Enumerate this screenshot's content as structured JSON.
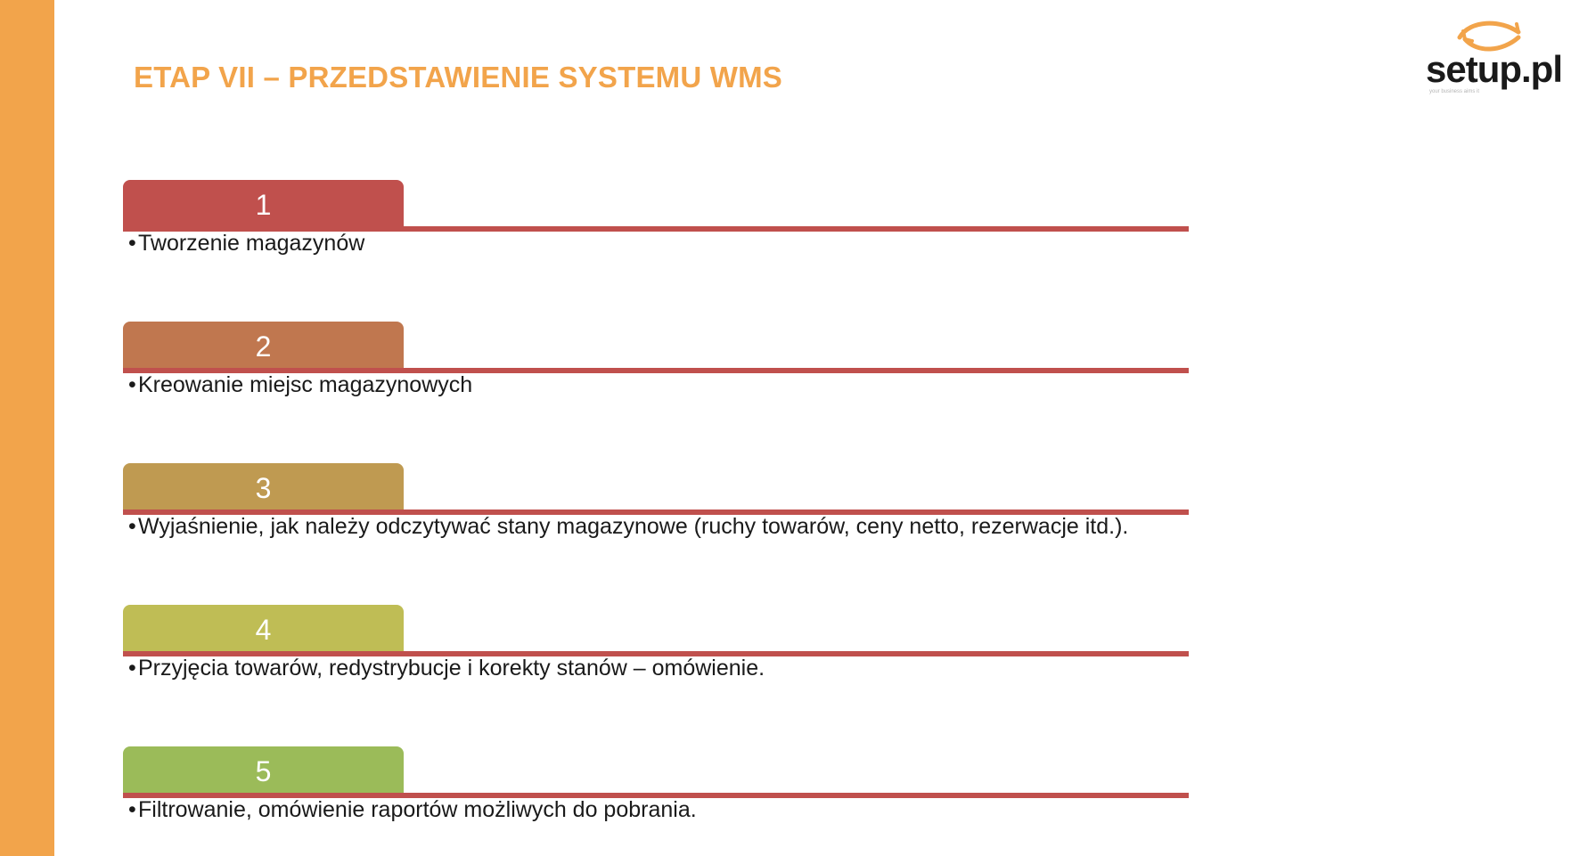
{
  "title": "ETAP VII – PRZEDSTAWIENIE SYSTEMU WMS",
  "logo": {
    "text": "setup.pl",
    "tagline": "your business aims it"
  },
  "colors": {
    "accent": "#f2a44b",
    "line": "#c0504d",
    "step_colors": [
      "#c0504d",
      "#c0774f",
      "#bf9a51",
      "#bfbd55",
      "#9bbb59"
    ]
  },
  "steps": [
    {
      "number": "1",
      "bullet": "•",
      "text": "Tworzenie magazynów"
    },
    {
      "number": "2",
      "bullet": "•",
      "text": "Kreowanie miejsc magazynowych"
    },
    {
      "number": "3",
      "bullet": "•",
      "text": "Wyjaśnienie, jak należy odczytywać stany magazynowe (ruchy towarów, ceny netto, rezerwacje itd.)."
    },
    {
      "number": "4",
      "bullet": "•",
      "text": "Przyjęcia towarów, redystrybucje i korekty stanów – omówienie."
    },
    {
      "number": "5",
      "bullet": "•",
      "text": "Filtrowanie, omówienie raportów możliwych do pobrania."
    }
  ]
}
